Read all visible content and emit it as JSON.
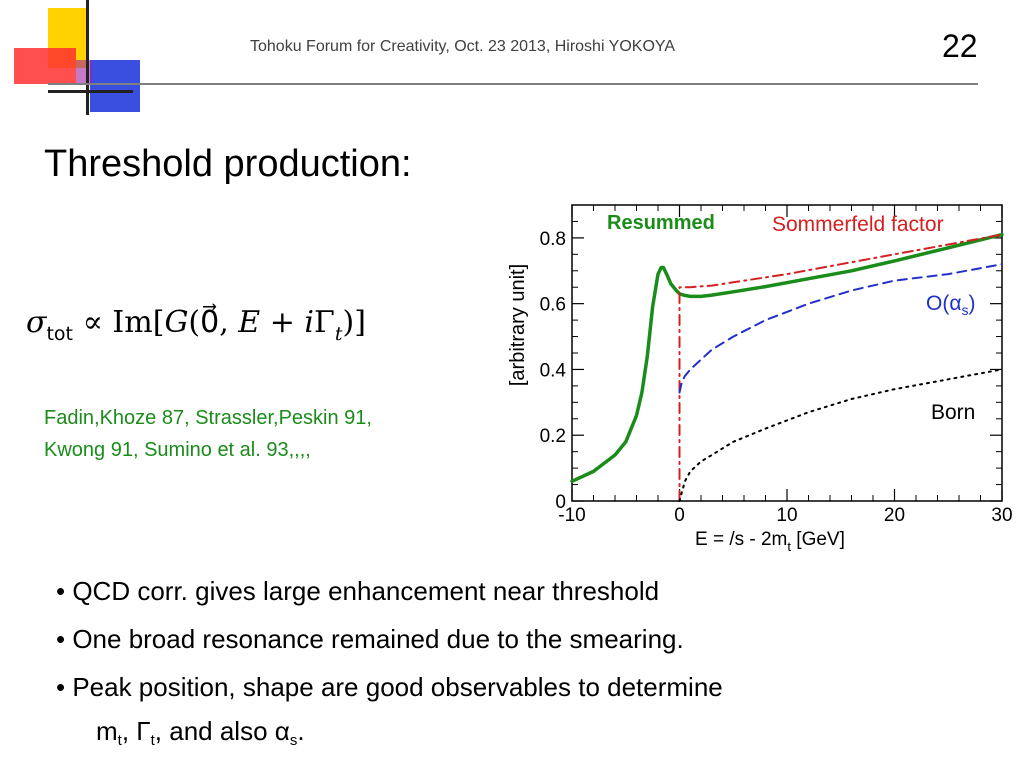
{
  "header": {
    "text": "Tohoku Forum for Creativity, Oct. 23 2013, Hiroshi YOKOYA",
    "page_number": "22"
  },
  "slide": {
    "title": "Threshold production:"
  },
  "formula": {
    "sigma": "σ",
    "tot": "tot",
    "propto": "∝",
    "im": "Im",
    "open": "[",
    "G": "G",
    "args": "(0⃗, ",
    "E": "E",
    "plus": " + ",
    "i": "i",
    "Gamma": "Γ",
    "t": "t",
    "close": ")]"
  },
  "references": {
    "line1": "Fadin,Khoze 87, Strassler,Peskin 91,",
    "line2": "Kwong 91, Sumino et al. 93,,,,"
  },
  "chart_data": {
    "type": "line",
    "ylabel": "[arbitrary unit]",
    "xlabel_main": "E = /s - 2m",
    "xlabel_sub": "t",
    "xlabel_tail": " [GeV]",
    "xlim": [
      -10,
      30
    ],
    "ylim": [
      0,
      0.9
    ],
    "xticks": [
      "-10",
      "0",
      "10",
      "20",
      "30"
    ],
    "xtick_values": [
      -10,
      0,
      10,
      20,
      30
    ],
    "yticks": [
      "0",
      "0.2",
      "0.4",
      "0.6",
      "0.8"
    ],
    "ytick_values": [
      0,
      0.2,
      0.4,
      0.6,
      0.8
    ],
    "grid": false,
    "series": [
      {
        "name": "Resummed",
        "color": "#1a8c1a",
        "style": "solid",
        "x": [
          -10,
          -8,
          -6,
          -5,
          -4,
          -3.5,
          -3,
          -2.5,
          -2,
          -1.7,
          -1.5,
          -1.2,
          -0.8,
          -0.3,
          0,
          0.5,
          1,
          2,
          3,
          5,
          8,
          12,
          16,
          20,
          25,
          30
        ],
        "y": [
          0.06,
          0.09,
          0.14,
          0.18,
          0.26,
          0.33,
          0.44,
          0.59,
          0.69,
          0.71,
          0.71,
          0.69,
          0.66,
          0.64,
          0.63,
          0.625,
          0.622,
          0.622,
          0.626,
          0.636,
          0.652,
          0.676,
          0.7,
          0.73,
          0.77,
          0.81
        ]
      },
      {
        "name": "Sommerfeld factor",
        "color": "#d42020",
        "style": "dashdot",
        "x": [
          0,
          0,
          1,
          3,
          5,
          10,
          15,
          20,
          25,
          30
        ],
        "y": [
          0,
          0.65,
          0.65,
          0.655,
          0.665,
          0.69,
          0.72,
          0.75,
          0.78,
          0.81
        ]
      },
      {
        "name": "O(αs)",
        "color": "#2030c8",
        "style": "dashed",
        "x": [
          0,
          0.2,
          0.5,
          1,
          2,
          3,
          5,
          8,
          12,
          16,
          20,
          25,
          30
        ],
        "y": [
          0.33,
          0.36,
          0.38,
          0.4,
          0.43,
          0.46,
          0.5,
          0.55,
          0.6,
          0.64,
          0.67,
          0.69,
          0.72
        ]
      },
      {
        "name": "Born",
        "color": "#000000",
        "style": "dotted",
        "x": [
          0,
          0.5,
          1,
          2,
          3,
          5,
          8,
          12,
          16,
          20,
          25,
          30
        ],
        "y": [
          0,
          0.06,
          0.09,
          0.12,
          0.14,
          0.18,
          0.22,
          0.27,
          0.31,
          0.34,
          0.37,
          0.4
        ]
      }
    ],
    "labels": {
      "resummed": "Resummed",
      "sommerfeld": "Sommerfeld factor",
      "oalpha_main": "O(α",
      "oalpha_sub": "s",
      "oalpha_close": ")",
      "born": "Born"
    }
  },
  "bullets": {
    "b1": "• QCD corr. gives large enhancement near threshold",
    "b2": "• One broad resonance remained due to the smearing.",
    "b3": "• Peak position, shape are good observables to determine",
    "b4_m": "m",
    "b4_t1": "t",
    "b4_sep": ", Γ",
    "b4_t2": "t",
    "b4_mid": ", and also ",
    "b4_alpha": "α",
    "b4_s": "s",
    "b4_end": "."
  }
}
